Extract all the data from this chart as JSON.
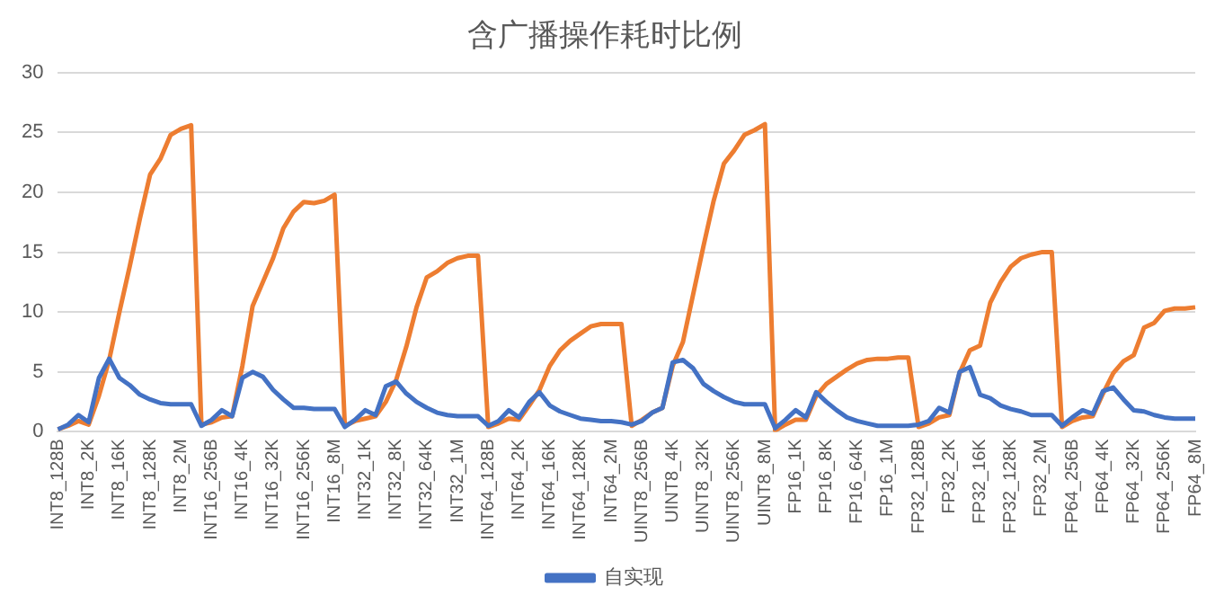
{
  "chart_data": {
    "type": "line",
    "title": "含广播操作耗时比例",
    "categories": [
      "INT8_128B",
      null,
      null,
      "INT8_2K",
      null,
      null,
      "INT8_16K",
      null,
      null,
      "INT8_128K",
      null,
      null,
      "INT8_2M",
      null,
      null,
      "INT16_256B",
      null,
      null,
      "INT16_4K",
      null,
      null,
      "INT16_32K",
      null,
      null,
      "INT16_256K",
      null,
      null,
      "INT16_8M",
      null,
      null,
      "INT32_1K",
      null,
      null,
      "INT32_8K",
      null,
      null,
      "INT32_64K",
      null,
      null,
      "INT32_1M",
      null,
      null,
      "INT64_128B",
      null,
      null,
      "INT64_2K",
      null,
      null,
      "INT64_16K",
      null,
      null,
      "INT64_128K",
      null,
      null,
      "INT64_2M",
      null,
      null,
      "UINT8_256B",
      null,
      null,
      "UINT8_4K",
      null,
      null,
      "UINT8_32K",
      null,
      null,
      "UINT8_256K",
      null,
      null,
      "UINT8_8M",
      null,
      null,
      "FP16_1K",
      null,
      null,
      "FP16_8K",
      null,
      null,
      "FP16_64K",
      null,
      null,
      "FP16_1M",
      null,
      null,
      "FP32_128B",
      null,
      null,
      "FP32_2K",
      null,
      null,
      "FP32_16K",
      null,
      null,
      "FP32_128K",
      null,
      null,
      "FP32_2M",
      null,
      null,
      "FP64_256B",
      null,
      null,
      "FP64_4K",
      null,
      null,
      "FP64_32K",
      null,
      null,
      "FP64_256K",
      null,
      null,
      "FP64_8M"
    ],
    "series": [
      {
        "name": "自实现",
        "color": "#4472c4",
        "values": [
          0.2,
          0.6,
          1.4,
          0.8,
          4.5,
          6.1,
          4.5,
          3.9,
          3.1,
          2.7,
          2.4,
          2.3,
          2.3,
          2.3,
          0.5,
          1.0,
          1.8,
          1.3,
          4.5,
          5.0,
          4.6,
          3.5,
          2.7,
          2.0,
          2.0,
          1.9,
          1.9,
          1.9,
          0.4,
          1.0,
          1.8,
          1.4,
          3.8,
          4.2,
          3.2,
          2.5,
          2.0,
          1.6,
          1.4,
          1.3,
          1.3,
          1.3,
          0.5,
          0.9,
          1.8,
          1.2,
          2.5,
          3.3,
          2.2,
          1.7,
          1.4,
          1.1,
          1.0,
          0.9,
          0.9,
          0.8,
          0.6,
          0.9,
          1.6,
          2.0,
          5.8,
          6.0,
          5.3,
          4.0,
          3.4,
          2.9,
          2.5,
          2.3,
          2.3,
          2.3,
          0.3,
          1.0,
          1.8,
          1.2,
          3.3,
          2.5,
          1.8,
          1.2,
          0.9,
          0.7,
          0.5,
          0.5,
          0.5,
          0.5,
          0.6,
          0.9,
          2.0,
          1.6,
          5.0,
          5.4,
          3.1,
          2.8,
          2.2,
          1.9,
          1.7,
          1.4,
          1.4,
          1.4,
          0.5,
          1.2,
          1.8,
          1.5,
          3.4,
          3.7,
          2.7,
          1.8,
          1.7,
          1.4,
          1.2,
          1.1,
          1.1,
          1.1
        ]
      },
      {
        "color": "#ed7d31",
        "values": [
          0.2,
          0.5,
          0.9,
          0.6,
          3.0,
          6.0,
          10.0,
          13.8,
          17.8,
          21.5,
          22.8,
          24.8,
          25.3,
          25.6,
          0.6,
          0.8,
          1.2,
          1.3,
          5.5,
          10.5,
          12.5,
          14.5,
          17.0,
          18.4,
          19.2,
          19.1,
          19.3,
          19.8,
          0.5,
          0.9,
          1.1,
          1.3,
          2.5,
          4.3,
          7.1,
          10.4,
          12.9,
          13.4,
          14.1,
          14.5,
          14.7,
          14.7,
          0.4,
          0.7,
          1.1,
          1.0,
          2.2,
          3.5,
          5.5,
          6.8,
          7.6,
          8.2,
          8.8,
          9.0,
          9.0,
          9.0,
          0.5,
          1.0,
          1.6,
          2.0,
          5.5,
          7.5,
          11.5,
          15.5,
          19.3,
          22.4,
          23.5,
          24.8,
          25.2,
          25.7,
          0.1,
          0.6,
          1.0,
          1.0,
          3.0,
          4.0,
          4.6,
          5.2,
          5.7,
          6.0,
          6.1,
          6.1,
          6.2,
          6.2,
          0.4,
          0.7,
          1.2,
          1.4,
          4.9,
          6.8,
          7.2,
          10.8,
          12.5,
          13.8,
          14.5,
          14.8,
          15.0,
          15.0,
          0.4,
          0.9,
          1.2,
          1.3,
          3.2,
          4.9,
          5.9,
          6.4,
          8.7,
          9.1,
          10.1,
          10.3,
          10.3,
          10.4
        ]
      }
    ],
    "ylim": [
      0,
      30
    ],
    "yticks": [
      0,
      5,
      10,
      15,
      20,
      25,
      30
    ],
    "grid": "y",
    "legend": "bottom",
    "marker": "none",
    "line_style": "solid"
  }
}
